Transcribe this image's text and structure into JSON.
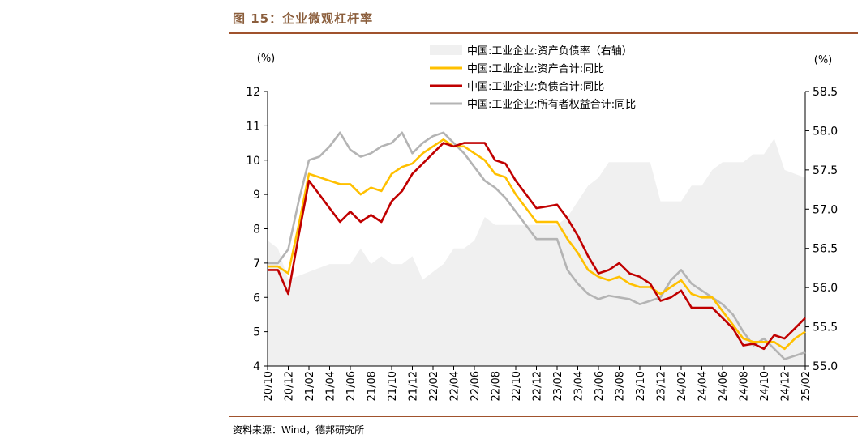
{
  "figure": {
    "title": "图 15：企业微观杠杆率",
    "source": "资料来源：Wind，德邦研究所"
  },
  "colors": {
    "area": "#f0f0f0",
    "assets": "#ffc000",
    "liabilities": "#c00000",
    "equity": "#b4b4b4",
    "title": "#8b5e3c",
    "rule": "#a0522d"
  },
  "chart_data": {
    "type": "line",
    "ylabel": "(%)",
    "y2label": "(%)",
    "ylim": [
      4,
      12
    ],
    "y2lim": [
      55.0,
      58.5
    ],
    "yticks": [
      "4",
      "5",
      "6",
      "7",
      "8",
      "9",
      "10",
      "11",
      "12"
    ],
    "y2ticks": [
      "55.0",
      "55.5",
      "56.0",
      "56.5",
      "57.0",
      "57.5",
      "58.0",
      "58.5"
    ],
    "x_tick_labels": [
      "20/10",
      "20/12",
      "21/02",
      "21/04",
      "21/06",
      "21/08",
      "21/10",
      "21/12",
      "22/02",
      "22/04",
      "22/06",
      "22/08",
      "22/10",
      "22/12",
      "23/02",
      "23/04",
      "23/06",
      "23/08",
      "23/10",
      "23/12",
      "24/02",
      "24/04",
      "24/06",
      "24/08",
      "24/10",
      "24/12",
      "25/02"
    ],
    "x": [
      "20/10",
      "20/11",
      "20/12",
      "21/01",
      "21/02",
      "21/03",
      "21/04",
      "21/05",
      "21/06",
      "21/07",
      "21/08",
      "21/09",
      "21/10",
      "21/11",
      "21/12",
      "22/01",
      "22/02",
      "22/03",
      "22/04",
      "22/05",
      "22/06",
      "22/07",
      "22/08",
      "22/09",
      "22/10",
      "22/11",
      "22/12",
      "23/01",
      "23/02",
      "23/03",
      "23/04",
      "23/05",
      "23/06",
      "23/07",
      "23/08",
      "23/09",
      "23/10",
      "23/11",
      "23/12",
      "24/01",
      "24/02",
      "24/03",
      "24/04",
      "24/05",
      "24/06",
      "24/07",
      "24/08",
      "24/09",
      "24/10",
      "24/11",
      "24/12",
      "25/01",
      "25/02"
    ],
    "legend": {
      "placement": "top-center"
    },
    "series": [
      {
        "name": "中国:工业企业:资产负债率（右轴）",
        "type": "area",
        "axis": "right",
        "values": [
          56.6,
          56.5,
          56.1,
          56.15,
          56.2,
          56.25,
          56.3,
          56.3,
          56.3,
          56.5,
          56.3,
          56.4,
          56.3,
          56.3,
          56.4,
          56.1,
          56.2,
          56.3,
          56.5,
          56.5,
          56.6,
          56.9,
          56.8,
          56.8,
          56.8,
          56.8,
          56.8,
          56.8,
          56.8,
          56.9,
          57.1,
          57.3,
          57.4,
          57.6,
          57.6,
          57.6,
          57.6,
          57.6,
          57.1,
          57.1,
          57.1,
          57.3,
          57.3,
          57.5,
          57.6,
          57.6,
          57.6,
          57.7,
          57.7,
          57.9,
          57.5,
          57.45,
          57.4
        ]
      },
      {
        "name": "中国:工业企业:资产合计:同比",
        "type": "line",
        "axis": "left",
        "values": [
          6.9,
          6.9,
          6.7,
          8.1,
          9.6,
          9.5,
          9.4,
          9.3,
          9.3,
          9.0,
          9.2,
          9.1,
          9.6,
          9.8,
          9.9,
          10.2,
          10.4,
          10.6,
          10.4,
          10.4,
          10.2,
          10.0,
          9.6,
          9.5,
          9.0,
          8.6,
          8.2,
          8.2,
          8.2,
          7.7,
          7.3,
          6.8,
          6.6,
          6.5,
          6.6,
          6.4,
          6.3,
          6.3,
          6.1,
          6.3,
          6.5,
          6.1,
          6.0,
          6.0,
          5.6,
          5.2,
          4.8,
          4.7,
          4.7,
          4.7,
          4.5,
          4.8,
          5.0
        ]
      },
      {
        "name": "中国:工业企业:负债合计:同比",
        "type": "line",
        "axis": "left",
        "values": [
          6.8,
          6.8,
          6.1,
          7.8,
          9.4,
          9.0,
          8.6,
          8.2,
          8.5,
          8.2,
          8.4,
          8.2,
          8.8,
          9.1,
          9.6,
          9.9,
          10.2,
          10.5,
          10.4,
          10.5,
          10.5,
          10.5,
          10.0,
          9.9,
          9.4,
          9.0,
          8.6,
          8.65,
          8.7,
          8.3,
          7.8,
          7.2,
          6.7,
          6.8,
          7.0,
          6.7,
          6.6,
          6.4,
          5.9,
          6.0,
          6.2,
          5.7,
          5.7,
          5.7,
          5.4,
          5.1,
          4.6,
          4.65,
          4.5,
          4.9,
          4.8,
          5.1,
          5.4
        ]
      },
      {
        "name": "中国:工业企业:所有者权益合计:同比",
        "type": "line",
        "axis": "left",
        "values": [
          7.0,
          7.0,
          7.4,
          8.8,
          10.0,
          10.1,
          10.4,
          10.8,
          10.3,
          10.1,
          10.2,
          10.4,
          10.5,
          10.8,
          10.2,
          10.5,
          10.7,
          10.8,
          10.5,
          10.2,
          9.8,
          9.4,
          9.2,
          8.9,
          8.5,
          8.1,
          7.7,
          7.7,
          7.7,
          6.8,
          6.4,
          6.1,
          5.95,
          6.05,
          6.0,
          5.95,
          5.8,
          5.9,
          6.0,
          6.5,
          6.8,
          6.4,
          6.2,
          6.0,
          5.8,
          5.5,
          5.0,
          4.6,
          4.8,
          4.5,
          4.2,
          4.3,
          4.4
        ]
      }
    ]
  }
}
